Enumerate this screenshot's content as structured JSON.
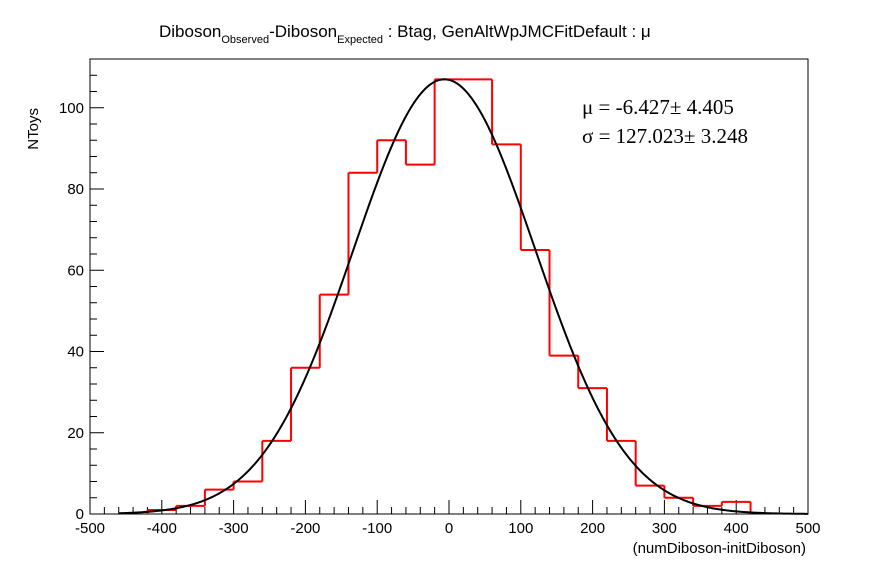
{
  "title": {
    "part1": "Diboson",
    "sub1": "Observed",
    "part2": "-Diboson",
    "sub2": "Expected",
    "part3": " : Btag, GenAltWpJMCFitDefault : μ"
  },
  "stats": {
    "mu_line": "μ = -6.427± 4.405",
    "sigma_line": "σ = 127.023± 3.248"
  },
  "chart_data": {
    "type": "bar",
    "xlabel": "(numDiboson-initDiboson)",
    "ylabel": "NToys",
    "xlim": [
      -500,
      500
    ],
    "ylim": [
      0,
      112
    ],
    "x_ticks": [
      -500,
      -400,
      -300,
      -200,
      -100,
      0,
      100,
      200,
      300,
      400,
      500
    ],
    "y_ticks": [
      0,
      20,
      40,
      60,
      80,
      100
    ],
    "histogram": {
      "bin_edges": [
        -420,
        -380,
        -340,
        -300,
        -260,
        -220,
        -180,
        -140,
        -100,
        -60,
        -20,
        20,
        60,
        100,
        140,
        180,
        220,
        260,
        300,
        340,
        380,
        420
      ],
      "counts": [
        1,
        2,
        6,
        8,
        18,
        36,
        54,
        84,
        92,
        86,
        107,
        107,
        91,
        65,
        39,
        31,
        18,
        7,
        4,
        2,
        3
      ],
      "color": "#ff0000"
    },
    "fit": {
      "function": "gaussian",
      "mu": -6.427,
      "mu_err": 4.405,
      "sigma": 127.023,
      "sigma_err": 3.248,
      "amplitude": 107,
      "range": [
        -460,
        500
      ],
      "color": "#000000"
    }
  }
}
